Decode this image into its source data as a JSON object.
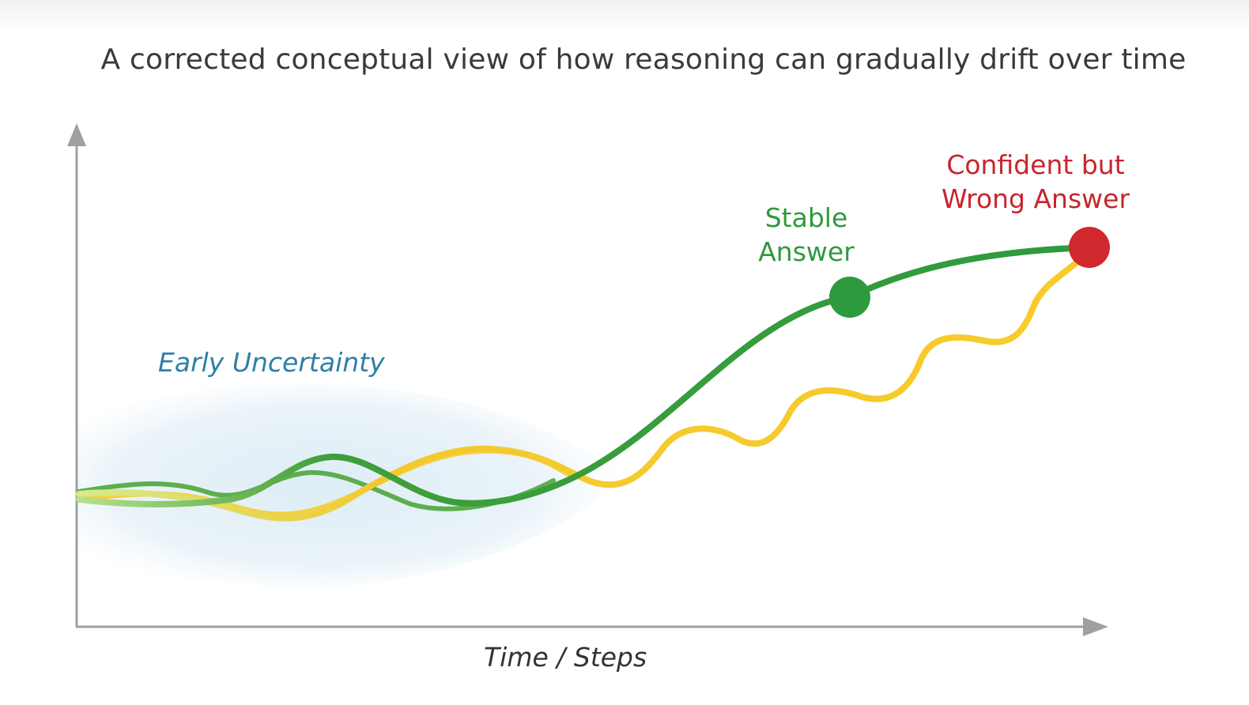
{
  "title": "A corrected conceptual view of how reasoning can gradually drift over time",
  "labels": {
    "early_uncertainty": "Early Uncertainty",
    "stable_answer_line1": "Stable",
    "stable_answer_line2": "Answer",
    "wrong_answer_line1": "Confident but",
    "wrong_answer_line2": "Wrong Answer",
    "x_axis": "Time / Steps"
  },
  "colors": {
    "stable_path": "#2e9a3e",
    "drift_path": "#f7cb2e",
    "stable_marker": "#2e9a3e",
    "wrong_marker": "#d0282e",
    "uncertainty_cloud": "#e3f0f8",
    "axis": "#9b9b9b"
  }
}
